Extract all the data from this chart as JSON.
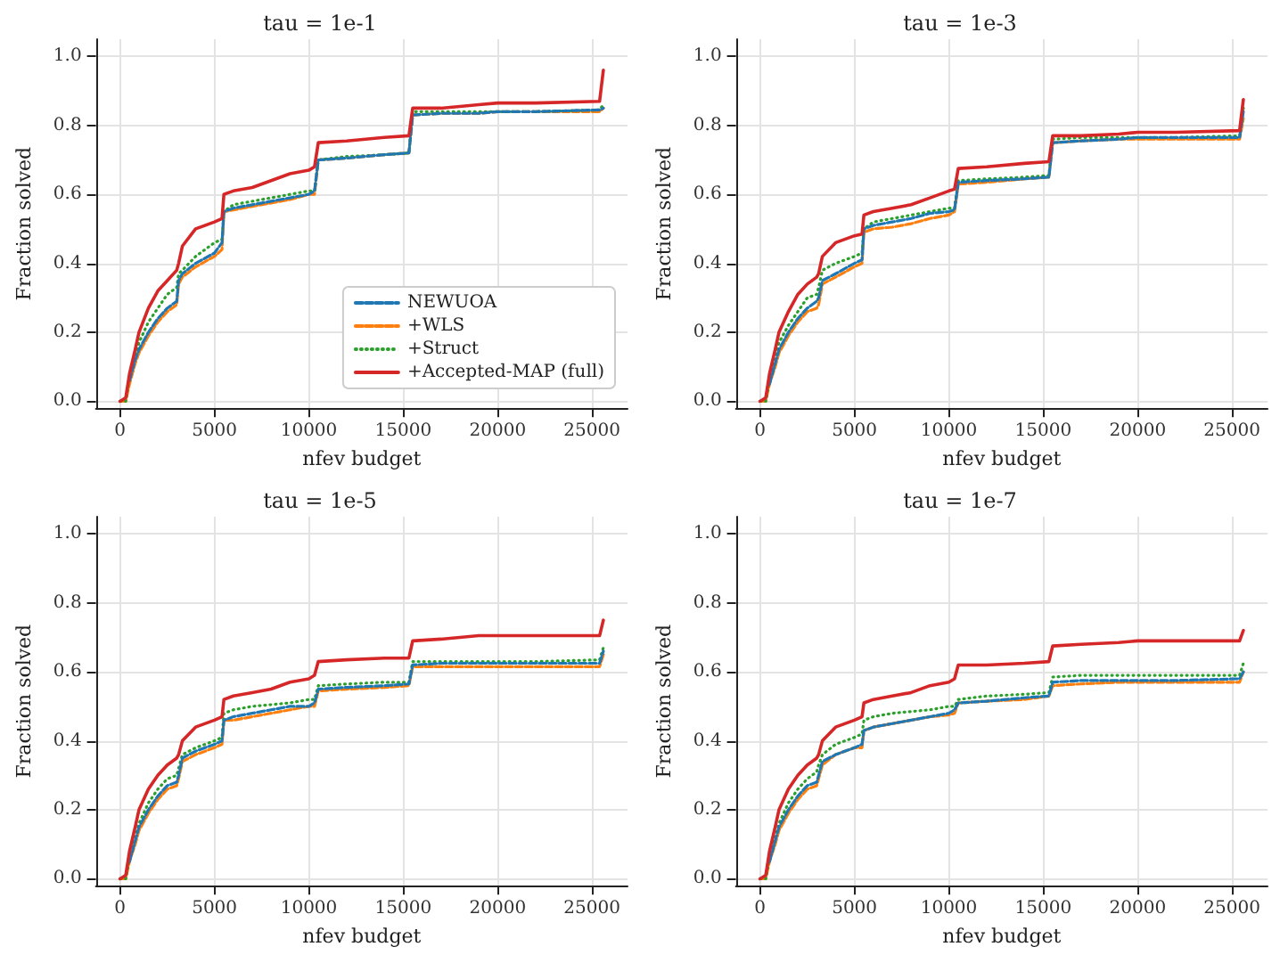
{
  "chart_data": [
    {
      "type": "line",
      "title": "tau = 1e-1",
      "xlabel": "nfev budget",
      "ylabel": "Fraction solved",
      "xlim": [
        -1280,
        26880
      ],
      "ylim": [
        -0.02,
        1.05
      ],
      "xticks": [
        0,
        5000,
        10000,
        15000,
        20000,
        25000
      ],
      "yticks": [
        {
          "value": 0,
          "label": "0.0"
        },
        {
          "value": 0.2,
          "label": "0.2"
        },
        {
          "value": 0.4,
          "label": "0.4"
        },
        {
          "value": 0.6,
          "label": "0.6"
        },
        {
          "value": 0.8,
          "label": "0.8"
        },
        {
          "value": 1,
          "label": "1.0"
        }
      ],
      "grid": true,
      "legend": "bottom right",
      "marker": "none",
      "x": [
        0,
        300,
        500,
        800,
        1000,
        1500,
        2000,
        2500,
        3000,
        3100,
        3300,
        4000,
        5000,
        5400,
        5500,
        6000,
        7000,
        8000,
        9000,
        10000,
        10300,
        10500,
        12000,
        14000,
        15300,
        15500,
        17000,
        19000,
        20000,
        22000,
        25400,
        25600
      ],
      "series": [
        {
          "name": "NEWUOA",
          "color": "#1f77b4",
          "line_style": "dashed",
          "values": [
            null,
            null,
            0.06,
            0.12,
            0.15,
            0.2,
            0.24,
            0.27,
            0.29,
            0.35,
            0.37,
            0.4,
            0.43,
            0.46,
            0.55,
            0.56,
            0.57,
            0.58,
            0.59,
            0.6,
            0.61,
            0.7,
            0.705,
            0.715,
            0.72,
            0.83,
            0.835,
            0.835,
            0.84,
            0.84,
            0.845,
            0.85
          ]
        },
        {
          "name": "+WLS",
          "color": "#ff7f0e",
          "line_style": "dashed",
          "values": [
            0,
            0,
            0.05,
            0.11,
            0.14,
            0.19,
            0.23,
            0.26,
            0.28,
            0.34,
            0.36,
            0.39,
            0.42,
            0.44,
            0.55,
            0.555,
            0.565,
            0.575,
            0.585,
            0.6,
            0.6,
            0.7,
            0.705,
            0.715,
            0.72,
            0.83,
            0.835,
            0.835,
            0.84,
            0.84,
            0.84,
            0.85
          ]
        },
        {
          "name": "+Struct",
          "color": "#2ca02c",
          "line_style": "dotted",
          "values": [
            0,
            0,
            0.07,
            0.13,
            0.17,
            0.23,
            0.27,
            0.31,
            0.33,
            0.37,
            0.38,
            0.42,
            0.46,
            0.47,
            0.55,
            0.57,
            0.58,
            0.59,
            0.6,
            0.61,
            0.61,
            0.7,
            0.71,
            0.715,
            0.72,
            0.84,
            0.84,
            0.84,
            0.84,
            0.84,
            0.845,
            0.86
          ]
        },
        {
          "name": "+Accepted-MAP (full)",
          "color": "#d62728",
          "line_style": "solid",
          "values": [
            0,
            0.01,
            0.08,
            0.15,
            0.2,
            0.27,
            0.32,
            0.35,
            0.38,
            0.4,
            0.45,
            0.5,
            0.52,
            0.53,
            0.6,
            0.61,
            0.62,
            0.64,
            0.66,
            0.67,
            0.68,
            0.75,
            0.755,
            0.765,
            0.77,
            0.85,
            0.85,
            0.86,
            0.865,
            0.865,
            0.87,
            0.96
          ]
        }
      ]
    },
    {
      "type": "line",
      "title": "tau = 1e-3",
      "xlabel": "nfev budget",
      "ylabel": "Fraction solved",
      "xlim": [
        -1280,
        26880
      ],
      "ylim": [
        -0.02,
        1.05
      ],
      "xticks": [
        0,
        5000,
        10000,
        15000,
        20000,
        25000
      ],
      "yticks": [
        {
          "value": 0,
          "label": "0.0"
        },
        {
          "value": 0.2,
          "label": "0.2"
        },
        {
          "value": 0.4,
          "label": "0.4"
        },
        {
          "value": 0.6,
          "label": "0.6"
        },
        {
          "value": 0.8,
          "label": "0.8"
        },
        {
          "value": 1,
          "label": "1.0"
        }
      ],
      "grid": true,
      "marker": "none",
      "x": [
        0,
        300,
        500,
        800,
        1000,
        1500,
        2000,
        2500,
        3000,
        3100,
        3300,
        4000,
        5000,
        5400,
        5500,
        6000,
        7000,
        8000,
        9000,
        10000,
        10300,
        10500,
        12000,
        14000,
        15300,
        15500,
        17000,
        19000,
        20000,
        22000,
        25400,
        25600
      ],
      "series": [
        {
          "color": "#1f77b4",
          "line_style": "dashed",
          "values": [
            null,
            null,
            0.05,
            0.11,
            0.15,
            0.2,
            0.24,
            0.27,
            0.29,
            0.3,
            0.35,
            0.37,
            0.4,
            0.41,
            0.5,
            0.51,
            0.52,
            0.53,
            0.545,
            0.55,
            0.555,
            0.635,
            0.64,
            0.645,
            0.65,
            0.75,
            0.755,
            0.76,
            0.765,
            0.765,
            0.765,
            0.84
          ]
        },
        {
          "color": "#ff7f0e",
          "line_style": "dashed",
          "values": [
            0,
            0,
            0.05,
            0.1,
            0.14,
            0.19,
            0.23,
            0.26,
            0.27,
            0.28,
            0.34,
            0.36,
            0.39,
            0.4,
            0.49,
            0.5,
            0.505,
            0.515,
            0.53,
            0.54,
            0.55,
            0.63,
            0.635,
            0.645,
            0.65,
            0.75,
            0.755,
            0.76,
            0.76,
            0.76,
            0.76,
            0.82
          ]
        },
        {
          "color": "#2ca02c",
          "line_style": "dotted",
          "values": [
            0,
            0,
            0.06,
            0.12,
            0.17,
            0.22,
            0.26,
            0.3,
            0.31,
            0.33,
            0.38,
            0.4,
            0.42,
            0.43,
            0.5,
            0.52,
            0.53,
            0.54,
            0.55,
            0.56,
            0.56,
            0.64,
            0.645,
            0.65,
            0.655,
            0.76,
            0.765,
            0.765,
            0.765,
            0.765,
            0.77,
            0.85
          ]
        },
        {
          "color": "#d62728",
          "line_style": "solid",
          "values": [
            0,
            0.01,
            0.08,
            0.15,
            0.2,
            0.26,
            0.31,
            0.34,
            0.36,
            0.37,
            0.42,
            0.46,
            0.48,
            0.485,
            0.54,
            0.55,
            0.56,
            0.57,
            0.59,
            0.61,
            0.615,
            0.675,
            0.68,
            0.69,
            0.695,
            0.77,
            0.77,
            0.775,
            0.78,
            0.78,
            0.785,
            0.875
          ]
        }
      ]
    },
    {
      "type": "line",
      "title": "tau = 1e-5",
      "xlabel": "nfev budget",
      "ylabel": "Fraction solved",
      "xlim": [
        -1280,
        26880
      ],
      "ylim": [
        -0.02,
        1.05
      ],
      "xticks": [
        0,
        5000,
        10000,
        15000,
        20000,
        25000
      ],
      "yticks": [
        {
          "value": 0,
          "label": "0.0"
        },
        {
          "value": 0.2,
          "label": "0.2"
        },
        {
          "value": 0.4,
          "label": "0.4"
        },
        {
          "value": 0.6,
          "label": "0.6"
        },
        {
          "value": 0.8,
          "label": "0.8"
        },
        {
          "value": 1,
          "label": "1.0"
        }
      ],
      "grid": true,
      "marker": "none",
      "x": [
        0,
        300,
        500,
        800,
        1000,
        1500,
        2000,
        2500,
        3000,
        3100,
        3300,
        4000,
        5000,
        5400,
        5500,
        6000,
        7000,
        8000,
        9000,
        10000,
        10300,
        10500,
        12000,
        14000,
        15300,
        15500,
        17000,
        19000,
        20000,
        22000,
        25400,
        25600
      ],
      "series": [
        {
          "color": "#1f77b4",
          "line_style": "dashed",
          "values": [
            null,
            null,
            0.05,
            0.11,
            0.15,
            0.2,
            0.24,
            0.27,
            0.28,
            0.3,
            0.35,
            0.37,
            0.39,
            0.4,
            0.46,
            0.47,
            0.48,
            0.49,
            0.5,
            0.5,
            0.51,
            0.55,
            0.555,
            0.56,
            0.565,
            0.62,
            0.625,
            0.625,
            0.625,
            0.625,
            0.625,
            0.66
          ]
        },
        {
          "color": "#ff7f0e",
          "line_style": "dashed",
          "values": [
            0,
            0,
            0.05,
            0.1,
            0.14,
            0.19,
            0.23,
            0.26,
            0.27,
            0.29,
            0.34,
            0.36,
            0.38,
            0.39,
            0.46,
            0.46,
            0.47,
            0.48,
            0.49,
            0.5,
            0.5,
            0.545,
            0.55,
            0.555,
            0.56,
            0.615,
            0.615,
            0.615,
            0.615,
            0.615,
            0.615,
            0.65
          ]
        },
        {
          "color": "#2ca02c",
          "line_style": "dotted",
          "values": [
            0,
            0,
            0.06,
            0.12,
            0.16,
            0.22,
            0.26,
            0.29,
            0.3,
            0.32,
            0.36,
            0.38,
            0.4,
            0.41,
            0.48,
            0.49,
            0.5,
            0.505,
            0.51,
            0.52,
            0.52,
            0.56,
            0.565,
            0.57,
            0.57,
            0.63,
            0.63,
            0.63,
            0.63,
            0.63,
            0.635,
            0.67
          ]
        },
        {
          "color": "#d62728",
          "line_style": "solid",
          "values": [
            0,
            0.01,
            0.08,
            0.15,
            0.2,
            0.26,
            0.3,
            0.33,
            0.35,
            0.36,
            0.4,
            0.44,
            0.46,
            0.47,
            0.52,
            0.53,
            0.54,
            0.55,
            0.57,
            0.58,
            0.59,
            0.63,
            0.635,
            0.64,
            0.64,
            0.69,
            0.695,
            0.705,
            0.705,
            0.705,
            0.705,
            0.75
          ]
        }
      ]
    },
    {
      "type": "line",
      "title": "tau = 1e-7",
      "xlabel": "nfev budget",
      "ylabel": "Fraction solved",
      "xlim": [
        -1280,
        26880
      ],
      "ylim": [
        -0.02,
        1.05
      ],
      "xticks": [
        0,
        5000,
        10000,
        15000,
        20000,
        25000
      ],
      "yticks": [
        {
          "value": 0,
          "label": "0.0"
        },
        {
          "value": 0.2,
          "label": "0.2"
        },
        {
          "value": 0.4,
          "label": "0.4"
        },
        {
          "value": 0.6,
          "label": "0.6"
        },
        {
          "value": 0.8,
          "label": "0.8"
        },
        {
          "value": 1,
          "label": "1.0"
        }
      ],
      "grid": true,
      "marker": "none",
      "x": [
        0,
        300,
        500,
        800,
        1000,
        1500,
        2000,
        2500,
        3000,
        3100,
        3300,
        4000,
        5000,
        5400,
        5500,
        6000,
        7000,
        8000,
        9000,
        10000,
        10300,
        10500,
        12000,
        14000,
        15300,
        15500,
        17000,
        19000,
        20000,
        22000,
        25400,
        25600
      ],
      "series": [
        {
          "color": "#1f77b4",
          "line_style": "dashed",
          "values": [
            null,
            null,
            0.05,
            0.11,
            0.15,
            0.2,
            0.24,
            0.27,
            0.28,
            0.3,
            0.34,
            0.36,
            0.38,
            0.39,
            0.43,
            0.44,
            0.45,
            0.46,
            0.47,
            0.48,
            0.49,
            0.51,
            0.515,
            0.525,
            0.53,
            0.57,
            0.575,
            0.575,
            0.575,
            0.575,
            0.58,
            0.6
          ]
        },
        {
          "color": "#ff7f0e",
          "line_style": "dashed",
          "values": [
            0,
            0,
            0.05,
            0.1,
            0.14,
            0.19,
            0.23,
            0.26,
            0.27,
            0.29,
            0.33,
            0.36,
            0.38,
            0.38,
            0.43,
            0.44,
            0.45,
            0.46,
            0.47,
            0.475,
            0.48,
            0.51,
            0.515,
            0.52,
            0.53,
            0.56,
            0.565,
            0.57,
            0.57,
            0.57,
            0.57,
            0.6
          ]
        },
        {
          "color": "#2ca02c",
          "line_style": "dotted",
          "values": [
            0,
            0,
            0.06,
            0.12,
            0.16,
            0.22,
            0.26,
            0.29,
            0.31,
            0.33,
            0.36,
            0.39,
            0.41,
            0.42,
            0.46,
            0.47,
            0.48,
            0.485,
            0.49,
            0.5,
            0.5,
            0.52,
            0.53,
            0.535,
            0.54,
            0.585,
            0.59,
            0.59,
            0.59,
            0.59,
            0.59,
            0.625
          ]
        },
        {
          "color": "#d62728",
          "line_style": "solid",
          "values": [
            0,
            0.01,
            0.08,
            0.15,
            0.2,
            0.26,
            0.3,
            0.33,
            0.35,
            0.36,
            0.4,
            0.44,
            0.46,
            0.47,
            0.51,
            0.52,
            0.53,
            0.54,
            0.56,
            0.57,
            0.58,
            0.62,
            0.62,
            0.625,
            0.63,
            0.675,
            0.68,
            0.685,
            0.69,
            0.69,
            0.69,
            0.72
          ]
        }
      ]
    }
  ]
}
